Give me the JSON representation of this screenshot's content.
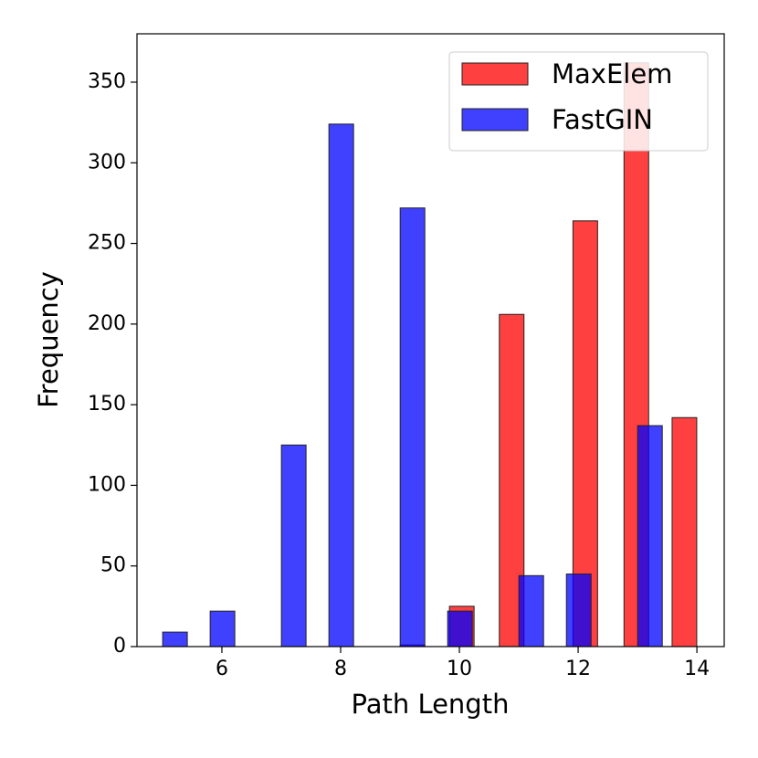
{
  "chart_data": {
    "type": "bar",
    "xlabel": "Path Length",
    "ylabel": "Frequency",
    "xlim": [
      4.57,
      14.46
    ],
    "xticks": [
      6,
      8,
      10,
      12,
      14
    ],
    "ylim": [
      0,
      380
    ],
    "yticks": [
      0,
      50,
      100,
      150,
      200,
      250,
      300,
      350
    ],
    "legend": "upper right",
    "series": [
      {
        "name": "MaxElem",
        "color": "#ff0000",
        "x": [
          9.21,
          10.04,
          10.88,
          12.12,
          12.98,
          13.79
        ],
        "values": [
          1,
          25,
          206,
          264,
          362,
          142
        ]
      },
      {
        "name": "FastGIN",
        "color": "#0000ff",
        "x": [
          5.21,
          6.01,
          7.21,
          8.01,
          9.21,
          10.01,
          11.21,
          12.01,
          13.21
        ],
        "values": [
          9,
          22,
          125,
          324,
          272,
          22,
          44,
          45,
          137
        ]
      }
    ]
  }
}
